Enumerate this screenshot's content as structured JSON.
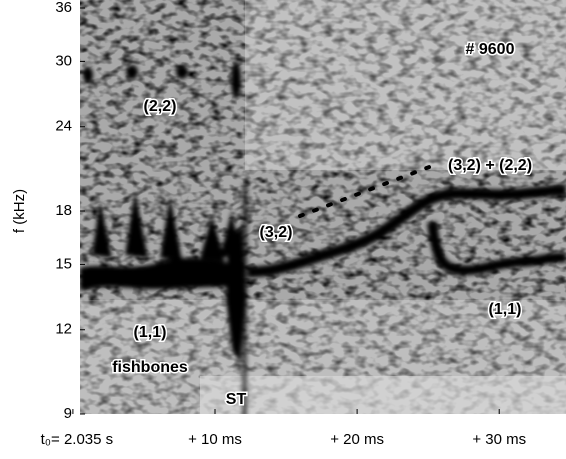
{
  "chart_data": {
    "type": "spectrogram",
    "y_label": "f (kHz)",
    "log_y": true,
    "ylim": [
      9,
      36
    ],
    "yticks": [
      9,
      12,
      15,
      18,
      24,
      30,
      36
    ],
    "xlim": [
      0.5,
      34.7
    ],
    "xticks": [
      {
        "value": 0,
        "label": "t₀= 2.035 s"
      },
      {
        "value": 10,
        "label": "+ 10 ms"
      },
      {
        "value": 20,
        "label": "+ 20 ms"
      },
      {
        "value": 30,
        "label": "+ 30 ms"
      }
    ],
    "annotations": [
      "# 9600",
      "(2,2)",
      "(3,2) + (2,2)",
      "(3,2)",
      "(1,1)",
      "fishbones",
      "ST",
      "(1,1)"
    ]
  }
}
